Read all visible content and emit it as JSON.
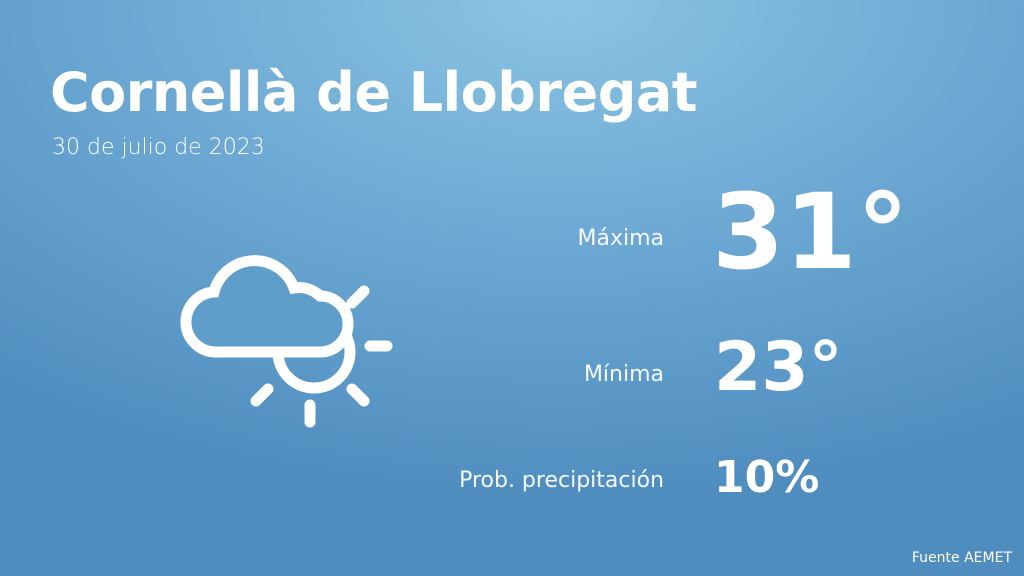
{
  "header": {
    "title": "Cornellà de Llobregat",
    "date": "30 de julio de 2023"
  },
  "weather_icon": "cloud-sun-icon",
  "forecast": {
    "max_label": "Máxima",
    "max_value": "31°",
    "min_label": "Mínima",
    "min_value": "23°",
    "precip_label": "Prob. precipitación",
    "precip_value": "10%"
  },
  "source": "Fuente AEMET",
  "colors": {
    "background_top": "#8cc4e2",
    "background_bottom": "#4f8dbf",
    "text": "#ffffff"
  }
}
